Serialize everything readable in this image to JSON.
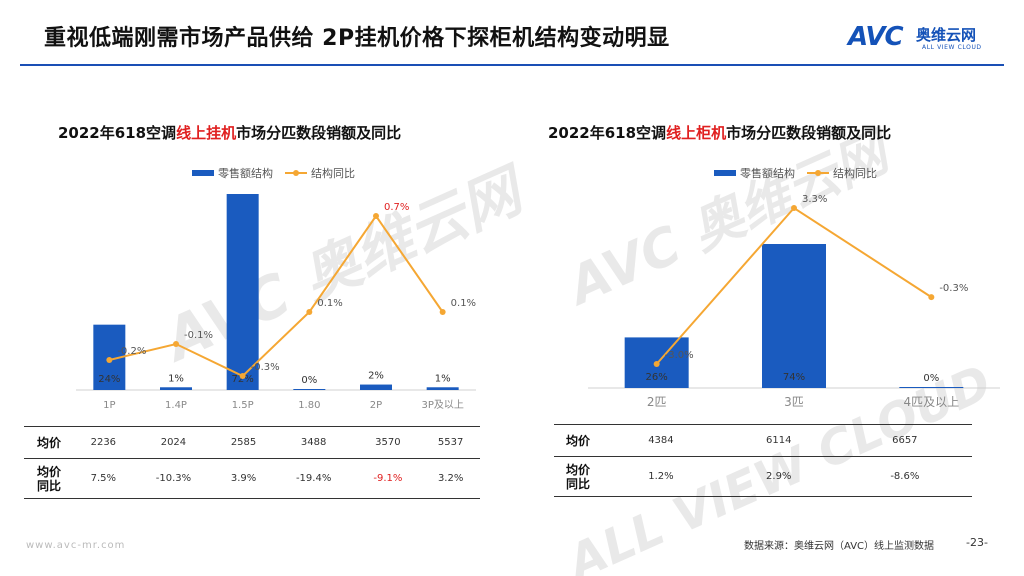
{
  "title": "重视低端刚需市场产品供给  2P挂机价格下探柜机结构变动明显",
  "logo": {
    "avc": "AVC",
    "cn": "奥维云网",
    "en": "ALL VIEW CLOUD"
  },
  "watermark": "AVC 奥维云网",
  "watermark_sub": "ALL VIEW CLOUD",
  "legend": {
    "bar": "零售额结构",
    "line": "结构同比"
  },
  "chart_data": [
    {
      "type": "bar",
      "title_pre": "2022年618空调",
      "title_hl": "线上挂机",
      "title_post": "市场分匹数段销额及同比",
      "categories": [
        "1P",
        "1.4P",
        "1.5P",
        "1.80",
        "2P",
        "3P及以上"
      ],
      "series": [
        {
          "name": "零售额结构",
          "values": [
            24,
            1,
            72,
            0,
            2,
            1
          ],
          "labels": [
            "24%",
            "1%",
            "72%",
            "0%",
            "2%",
            "1%"
          ]
        },
        {
          "name": "结构同比",
          "values": [
            -0.2,
            -0.1,
            -0.3,
            0.1,
            0.7,
            0.1
          ],
          "labels": [
            "-0.2%",
            "-0.1%",
            "-0.3%",
            "0.1%",
            "0.7%",
            "0.1%"
          ]
        }
      ],
      "price_label": "均价",
      "yoy_label_1": "均价",
      "yoy_label_2": "同比",
      "avg_price": [
        "2236",
        "2024",
        "2585",
        "3488",
        "3570",
        "5537"
      ],
      "avg_price_yoy": [
        "7.5%",
        "-10.3%",
        "3.9%",
        "-19.4%",
        "-9.1%",
        "3.2%"
      ],
      "highlight_color": "#e02020"
    },
    {
      "type": "bar",
      "title_pre": "2022年618空调",
      "title_hl": "线上柜机",
      "title_post": "市场分匹数段销额及同比",
      "categories": [
        "2匹",
        "3匹",
        "4匹及以上"
      ],
      "series": [
        {
          "name": "零售额结构",
          "values": [
            26,
            74,
            0
          ],
          "labels": [
            "26%",
            "74%",
            "0%"
          ]
        },
        {
          "name": "结构同比",
          "values": [
            -3.0,
            3.3,
            -0.3
          ],
          "labels": [
            "-3.0%",
            "3.3%",
            "-0.3%"
          ]
        }
      ],
      "price_label": "均价",
      "yoy_label_1": "均价",
      "yoy_label_2": "同比",
      "avg_price": [
        "4384",
        "6114",
        "6657"
      ],
      "avg_price_yoy": [
        "1.2%",
        "2.9%",
        "-8.6%"
      ]
    }
  ],
  "colors": {
    "bar": "#1a5bbf",
    "line": "#f5a733",
    "accent": "#1a4fb5"
  },
  "footer": {
    "url": "www.avc-mr.com",
    "source": "数据来源：奥维云网（AVC）线上监测数据",
    "page": "-23-"
  }
}
